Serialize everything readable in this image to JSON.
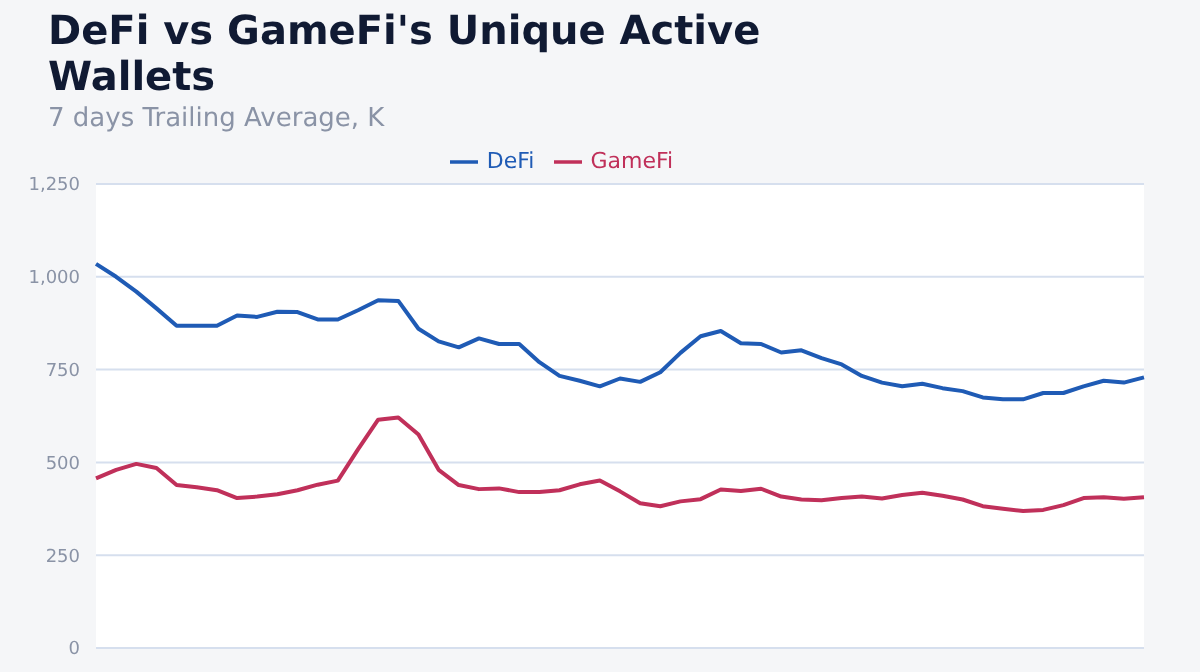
{
  "chart_data": {
    "type": "line",
    "title": "DeFi vs GameFi's Unique Active Wallets",
    "subtitle": "7 days Trailing Average, K",
    "categories": [
      null,
      null,
      null,
      null,
      null,
      null,
      null,
      null,
      null,
      null,
      null,
      null,
      null,
      null,
      null,
      null,
      null,
      null,
      null,
      null,
      null,
      null,
      null,
      null,
      null,
      null,
      null,
      null,
      null,
      null,
      null,
      null,
      null,
      null,
      null,
      null,
      null,
      null,
      null,
      null,
      null,
      null,
      null,
      null,
      null,
      null,
      null,
      null,
      null,
      null,
      null,
      null,
      null
    ],
    "series": [
      {
        "name": "DeFi",
        "color": "#1f5bb5",
        "values": [
          1035,
          1000,
          960,
          915,
          868,
          868,
          868,
          896,
          892,
          906,
          905,
          885,
          885,
          910,
          937,
          935,
          860,
          826,
          810,
          834,
          819,
          819,
          770,
          733,
          720,
          705,
          726,
          717,
          743,
          795,
          840,
          854,
          821,
          819,
          796,
          802,
          781,
          764,
          733,
          715,
          705,
          712,
          700,
          692,
          675,
          670,
          670,
          687,
          687,
          705,
          720,
          715,
          729
        ]
      },
      {
        "name": "GameFi",
        "color": "#c0305a",
        "values": [
          457,
          480,
          496,
          485,
          439,
          433,
          425,
          404,
          408,
          414,
          425,
          440,
          451,
          535,
          615,
          621,
          575,
          480,
          439,
          428,
          430,
          420,
          420,
          425,
          441,
          451,
          422,
          390,
          382,
          395,
          401,
          427,
          423,
          429,
          408,
          400,
          398,
          404,
          408,
          403,
          412,
          418,
          410,
          400,
          382,
          375,
          369,
          372,
          385,
          404,
          406,
          402,
          406
        ]
      }
    ],
    "ylim": [
      0,
      1250
    ],
    "yticks": [
      0,
      250,
      500,
      750,
      {
        "value": 1000,
        "label": "1,000"
      },
      {
        "value": 1250,
        "label": "1,250"
      }
    ],
    "grid": "y",
    "legend": "top",
    "marker": "none",
    "line_style": "solid"
  }
}
